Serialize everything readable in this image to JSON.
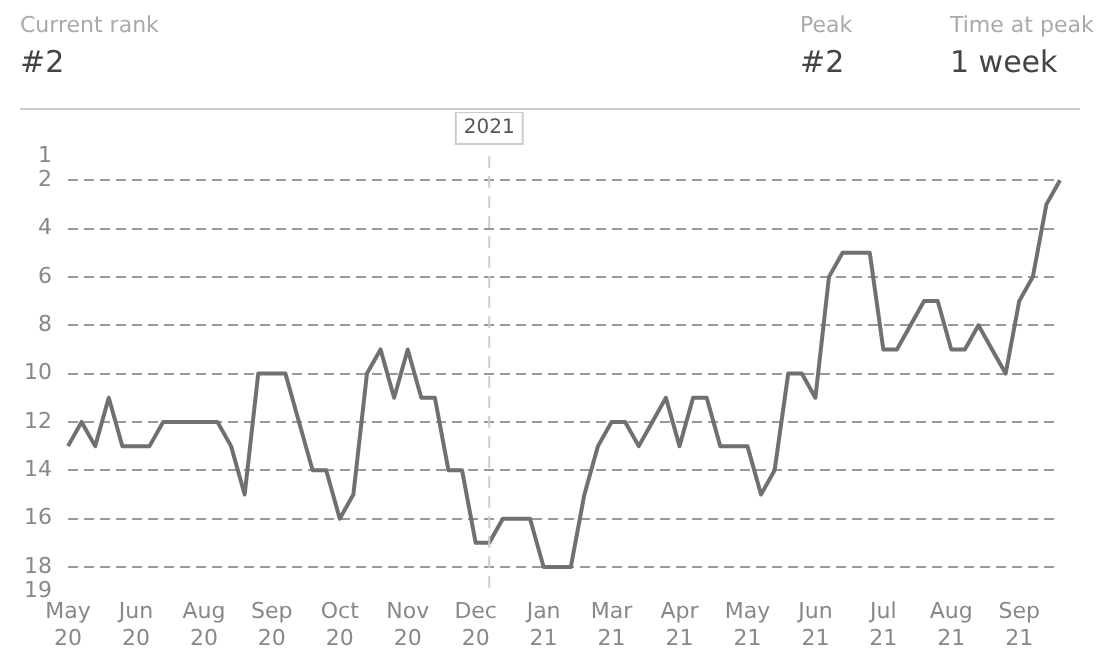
{
  "chart_data": {
    "type": "line",
    "annotations": [
      "Current rank",
      "#2",
      "Peak",
      "#2",
      "Time at peak",
      "1 week",
      "2021"
    ],
    "categories": [
      "May 20",
      null,
      null,
      null,
      null,
      "Jun 20",
      null,
      null,
      null,
      null,
      "Aug 20",
      null,
      null,
      null,
      null,
      "Sep 20",
      null,
      null,
      null,
      null,
      "Oct 20",
      null,
      null,
      null,
      null,
      "Nov 20",
      null,
      null,
      null,
      null,
      "Dec 20",
      null,
      null,
      null,
      null,
      "Jan 21",
      null,
      null,
      null,
      null,
      "Mar 21",
      null,
      null,
      null,
      null,
      "Apr 21",
      null,
      null,
      null,
      null,
      "May 21",
      null,
      null,
      null,
      null,
      "Jun 21",
      null,
      null,
      null,
      null,
      "Jul 21",
      null,
      null,
      null,
      null,
      "Aug 21",
      null,
      null,
      null,
      null,
      "Sep 21",
      null,
      null,
      null
    ],
    "series": [
      {
        "color": "#707070",
        "values": [
          13,
          12,
          13,
          11,
          13,
          13,
          13,
          12,
          12,
          12,
          12,
          12,
          13,
          15,
          10,
          10,
          10,
          12,
          14,
          14,
          16,
          15,
          10,
          9,
          11,
          9,
          11,
          11,
          14,
          14,
          17,
          17,
          16,
          16,
          16,
          18,
          18,
          18,
          15,
          13,
          12,
          12,
          13,
          12,
          11,
          13,
          11,
          11,
          13,
          13,
          13,
          15,
          14,
          10,
          10,
          11,
          6,
          5,
          5,
          5,
          9,
          9,
          8,
          7,
          7,
          9,
          9,
          8,
          9,
          10,
          7,
          6,
          3,
          2
        ]
      }
    ],
    "ylim": [
      19,
      1
    ],
    "yticks": [
      1,
      2,
      4,
      6,
      8,
      10,
      12,
      14,
      16,
      18,
      19
    ],
    "grid": "y",
    "line_style": "solid",
    "marker": "none",
    "legend": false
  }
}
